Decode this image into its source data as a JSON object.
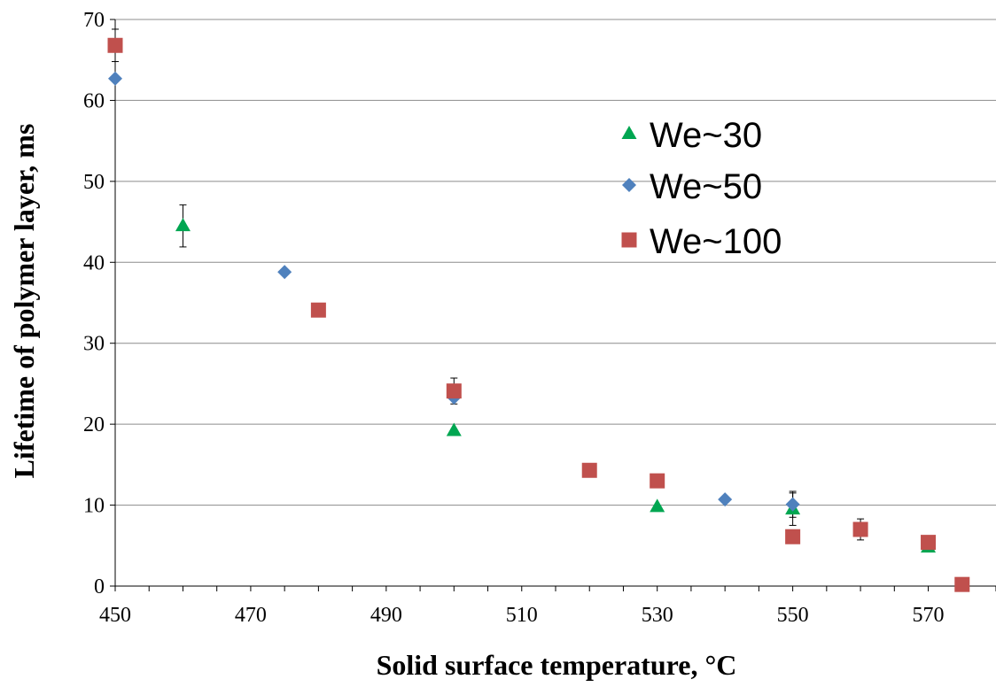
{
  "chart_data": {
    "type": "scatter",
    "title": "",
    "xlabel": "Solid surface temperature, °C",
    "ylabel": "Lifetime of polymer layer, ms",
    "xlim": [
      450,
      580
    ],
    "ylim": [
      0,
      70
    ],
    "x_ticks": [
      450,
      470,
      490,
      510,
      530,
      550,
      570
    ],
    "y_ticks": [
      0,
      10,
      20,
      30,
      40,
      50,
      60,
      70
    ],
    "grid": "horizontal",
    "legend_position": "top-right",
    "series": [
      {
        "name": "We~30",
        "marker": "triangle",
        "color": "#00a651",
        "points": [
          {
            "x": 460,
            "y": 44.5,
            "err": 2.6
          },
          {
            "x": 500,
            "y": 19.2,
            "err": 0
          },
          {
            "x": 530,
            "y": 9.8,
            "err": 0
          },
          {
            "x": 550,
            "y": 9.5,
            "err": 2.0
          },
          {
            "x": 570,
            "y": 4.8,
            "err": 0
          }
        ]
      },
      {
        "name": "We~50",
        "marker": "diamond",
        "color": "#4f81bd",
        "points": [
          {
            "x": 450,
            "y": 62.7,
            "err": 0
          },
          {
            "x": 475,
            "y": 38.8,
            "err": 0
          },
          {
            "x": 500,
            "y": 23.3,
            "err": 0
          },
          {
            "x": 540,
            "y": 10.7,
            "err": 0
          },
          {
            "x": 550,
            "y": 10.1,
            "err": 1.6
          }
        ]
      },
      {
        "name": "We~100",
        "marker": "square",
        "color": "#c0504d",
        "points": [
          {
            "x": 450,
            "y": 66.8,
            "err": 2.0
          },
          {
            "x": 480,
            "y": 34.1,
            "err": 0
          },
          {
            "x": 500,
            "y": 24.1,
            "err": 1.6
          },
          {
            "x": 520,
            "y": 14.3,
            "err": 0
          },
          {
            "x": 530,
            "y": 13.0,
            "err": 0
          },
          {
            "x": 550,
            "y": 6.1,
            "err": 0
          },
          {
            "x": 560,
            "y": 7.0,
            "err": 1.3
          },
          {
            "x": 570,
            "y": 5.4,
            "err": 0
          },
          {
            "x": 575,
            "y": 0.2,
            "err": 0
          }
        ]
      }
    ]
  }
}
